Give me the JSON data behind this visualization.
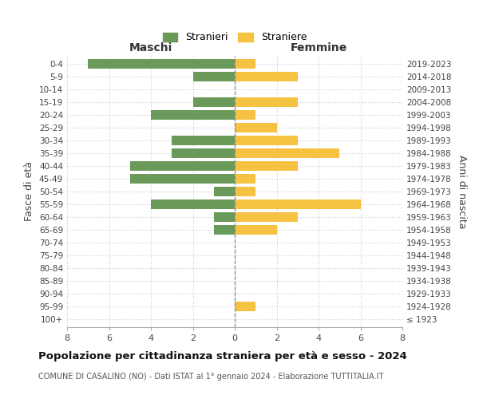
{
  "age_groups": [
    "100+",
    "95-99",
    "90-94",
    "85-89",
    "80-84",
    "75-79",
    "70-74",
    "65-69",
    "60-64",
    "55-59",
    "50-54",
    "45-49",
    "40-44",
    "35-39",
    "30-34",
    "25-29",
    "20-24",
    "15-19",
    "10-14",
    "5-9",
    "0-4"
  ],
  "birth_years": [
    "≤ 1923",
    "1924-1928",
    "1929-1933",
    "1934-1938",
    "1939-1943",
    "1944-1948",
    "1949-1953",
    "1954-1958",
    "1959-1963",
    "1964-1968",
    "1969-1973",
    "1974-1978",
    "1979-1983",
    "1984-1988",
    "1989-1993",
    "1994-1998",
    "1999-2003",
    "2004-2008",
    "2009-2013",
    "2014-2018",
    "2019-2023"
  ],
  "males": [
    0,
    0,
    0,
    0,
    0,
    0,
    0,
    1,
    1,
    4,
    1,
    5,
    5,
    3,
    3,
    0,
    4,
    2,
    0,
    2,
    7
  ],
  "females": [
    0,
    1,
    0,
    0,
    0,
    0,
    0,
    2,
    3,
    6,
    1,
    1,
    3,
    5,
    3,
    2,
    1,
    3,
    0,
    3,
    1
  ],
  "male_color": "#6a9a5a",
  "female_color": "#f5c242",
  "background_color": "#ffffff",
  "grid_color": "#cccccc",
  "title": "Popolazione per cittadinanza straniera per età e sesso - 2024",
  "subtitle": "COMUNE DI CASALINO (NO) - Dati ISTAT al 1° gennaio 2024 - Elaborazione TUTTITALIA.IT",
  "xlabel_left": "Maschi",
  "xlabel_right": "Femmine",
  "ylabel": "Fasce di età",
  "ylabel_right": "Anni di nascita",
  "legend_male": "Stranieri",
  "legend_female": "Straniere",
  "xlim": 8,
  "bar_height": 0.75
}
